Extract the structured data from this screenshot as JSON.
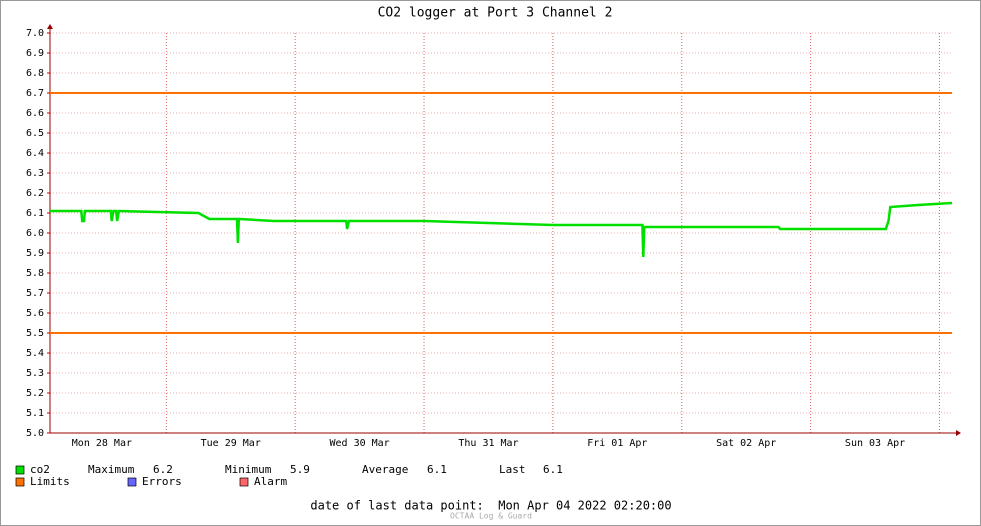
{
  "chart_data": {
    "type": "line",
    "title": "CO2 logger at Port 3 Channel 2",
    "xlim": [
      "2022-03-28T02:20",
      "2022-04-04T02:20"
    ],
    "xticks": [
      {
        "value": "2022-03-28T12:00",
        "label": "Mon 28 Mar"
      },
      {
        "value": "2022-03-29T12:00",
        "label": "Tue 29 Mar"
      },
      {
        "value": "2022-03-30T12:00",
        "label": "Wed 30 Mar"
      },
      {
        "value": "2022-03-31T12:00",
        "label": "Thu 31 Mar"
      },
      {
        "value": "2022-04-01T12:00",
        "label": "Fri 01 Apr"
      },
      {
        "value": "2022-04-02T12:00",
        "label": "Sat 02 Apr"
      },
      {
        "value": "2022-04-03T12:00",
        "label": "Sun 03 Apr"
      }
    ],
    "xgrid": [
      "2022-03-29T00:00",
      "2022-03-30T00:00",
      "2022-03-31T00:00",
      "2022-04-01T00:00",
      "2022-04-02T00:00",
      "2022-04-03T00:00",
      "2022-04-04T00:00"
    ],
    "ylim": [
      5.0,
      7.0
    ],
    "yticks": [
      {
        "value": 5.0,
        "label": "5.0"
      },
      5.1,
      5.2,
      5.3,
      5.4,
      5.5,
      5.6,
      5.7,
      5.8,
      5.9,
      {
        "value": 6.0,
        "label": "6.0"
      },
      6.1,
      6.2,
      6.3,
      6.4,
      6.5,
      6.6,
      6.7,
      6.8,
      6.9,
      {
        "value": 7.0,
        "label": "7.0"
      }
    ],
    "grid": true,
    "x": [
      "2022-03-28T02:20",
      "2022-03-28T08:10",
      "2022-03-28T08:20",
      "2022-03-28T08:40",
      "2022-03-28T08:50",
      "2022-03-28T13:40",
      "2022-03-28T13:50",
      "2022-03-28T14:10",
      "2022-03-28T14:40",
      "2022-03-28T14:50",
      "2022-03-28T15:10",
      "2022-03-29T06:00",
      "2022-03-29T08:00",
      "2022-03-29T13:10",
      "2022-03-29T13:20",
      "2022-03-29T13:30",
      "2022-03-29T20:00",
      "2022-03-30T09:30",
      "2022-03-30T09:40",
      "2022-03-30T10:00",
      "2022-03-31T00:00",
      "2022-03-31T12:00",
      "2022-04-01T00:00",
      "2022-04-01T16:40",
      "2022-04-01T16:50",
      "2022-04-01T17:00",
      "2022-04-02T18:00",
      "2022-04-02T18:20",
      "2022-04-03T14:00",
      "2022-04-03T14:30",
      "2022-04-03T14:50",
      "2022-04-03T20:00",
      "2022-04-04T02:20"
    ],
    "series": [
      {
        "name": "co2",
        "color": "#00e000",
        "values": [
          6.11,
          6.11,
          6.06,
          6.06,
          6.11,
          6.11,
          6.06,
          6.11,
          6.11,
          6.06,
          6.11,
          6.1,
          6.07,
          6.07,
          5.95,
          6.07,
          6.06,
          6.06,
          6.02,
          6.06,
          6.06,
          6.05,
          6.04,
          6.04,
          5.88,
          6.03,
          6.03,
          6.02,
          6.02,
          6.06,
          6.13,
          6.14,
          6.15
        ]
      }
    ],
    "limits": {
      "name": "Limits",
      "color": "#ff7000",
      "values": [
        6.7,
        5.5
      ]
    },
    "stats": [
      {
        "label": "Maximum",
        "value": 6.2
      },
      {
        "label": "Minimum",
        "value": 5.9
      },
      {
        "label": "Average",
        "value": 6.1
      },
      {
        "label": "Last",
        "value": 6.1
      }
    ],
    "legend": [
      {
        "name": "Errors",
        "color": "#6666ff"
      },
      {
        "name": "Alarm",
        "color": "#ff6666"
      }
    ],
    "footer": "date of last data point:  Mon Apr 04 2022 02:20:00",
    "watermark": "OCTAA Log & Guard"
  }
}
